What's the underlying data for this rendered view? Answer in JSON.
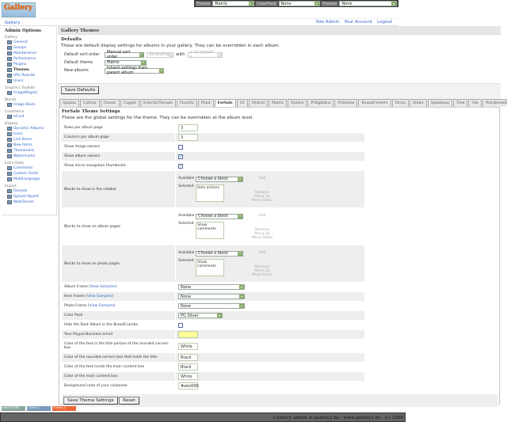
{
  "topbar": {
    "theme_label": "Theme",
    "theme_value": "Matrix",
    "colorpack_label": "ColorPack",
    "colorpack_value": "None",
    "frames_label": "Frames",
    "frames_value": "None"
  },
  "logo_text": "Gallery",
  "breadcrumb": "Gallery",
  "toplinks": [
    "Site Admin",
    "Your Account",
    "Logout"
  ],
  "sidebar": {
    "title": "Admin Options",
    "groups": [
      {
        "name": "Gallery",
        "items": [
          "General",
          "Groups",
          "Maintenance",
          "Performance",
          "Plugins",
          "Themes",
          "URL Rewrite",
          "Users"
        ]
      },
      {
        "name": "Graphics Toolkits",
        "items": [
          "ImageMagick"
        ]
      },
      {
        "name": "Blocks",
        "items": [
          "Image Block"
        ]
      },
      {
        "name": "Commerce",
        "items": [
          "eCard"
        ]
      },
      {
        "name": "Display",
        "items": [
          "Dynamic Albums",
          "Icons",
          "Link Items",
          "New Items",
          "Thumbnails",
          "Watermarks"
        ]
      },
      {
        "name": "Extra Data",
        "items": [
          "Comments",
          "Custom Fields",
          "MultiLanguage"
        ]
      },
      {
        "name": "Import",
        "items": [
          "Remote",
          "Upload Applet",
          "Web/Server"
        ]
      }
    ],
    "current": "Themes"
  },
  "main": {
    "title": "Gallery Themes",
    "defaults": {
      "heading": "Defaults",
      "desc": "These are default display settings for albums in your gallery. They can be overridden in each album.",
      "sort_label": "Default sort order",
      "sort_value": "Manual sort order",
      "sort_dir": "Ascending",
      "with_label": "with",
      "with_value": "« no presort »",
      "theme_label": "Default theme",
      "theme_value": "Matrix",
      "new_label": "New albums",
      "new_value": "Inherit settings from parent album",
      "save": "Save Defaults"
    },
    "tabs": [
      "Ajaxian",
      "Carbon",
      "Classic",
      "Cupple",
      "EclecticThreads",
      "Floatrix",
      "Fluid",
      "ForSale",
      "G1",
      "Hybrid",
      "Matrix",
      "Nature",
      "PGlightbox",
      "PGtheme",
      "RoundCorners",
      "Siriux",
      "Slider",
      "Splatbang",
      "Tree",
      "Tile",
      "WordpressEmbedded"
    ],
    "active_tab": "ForSale",
    "theme": {
      "heading": "ForSale Theme Settings",
      "desc": "These are the global settings for the theme. They can be overridden at the album level.",
      "block_available": "Available",
      "block_selected": "Selected",
      "block_choose": "Choose a block",
      "block_add": "Add",
      "block_remove": "Remove",
      "block_up": "Move Up",
      "block_down": "Move Down",
      "view_samples": "View Samples",
      "rows": [
        {
          "label": "Rows per album page",
          "type": "text",
          "value": "3"
        },
        {
          "label": "Columns per album page",
          "type": "text",
          "value": "3"
        },
        {
          "label": "Show image owners",
          "type": "check",
          "checked": false
        },
        {
          "label": "Show album owners",
          "type": "check",
          "checked": true
        },
        {
          "label": "Show micro navigation thumbnails",
          "type": "check",
          "checked": true
        },
        {
          "label": "Blocks to show in the sidebar",
          "type": "blocks",
          "selected": "Item actions"
        },
        {
          "label": "Blocks to show on album pages",
          "type": "blocks",
          "selected": "Show comments"
        },
        {
          "label": "Blocks to show on photo pages",
          "type": "blocks",
          "selected": "Show comments"
        },
        {
          "label": "Album Frame",
          "samples": true,
          "type": "select",
          "value": "None"
        },
        {
          "label": "Item Frame",
          "samples": true,
          "type": "select",
          "value": "None"
        },
        {
          "label": "Photo Frame",
          "samples": true,
          "type": "select",
          "value": "None"
        },
        {
          "label": "Color Pack",
          "type": "select",
          "value": "PG Silver",
          "short": true
        },
        {
          "label": "Hide the Root Album in the BreadCrumbs",
          "type": "check",
          "checked": false
        },
        {
          "label": "Your Paypal Business email",
          "type": "text",
          "value": "",
          "yellow": true
        },
        {
          "label": "Color of the text in the title portion of the rounded corners box",
          "type": "text",
          "value": "White"
        },
        {
          "label": "Color of the rounded corners box that holds the title",
          "type": "text",
          "value": "Black"
        },
        {
          "label": "Color of the text inside the main content box",
          "type": "text",
          "value": "Black"
        },
        {
          "label": "Color of the main content box",
          "type": "text",
          "value": "White"
        },
        {
          "label": "Background color of your colorpack",
          "type": "text",
          "value": "#ebd095"
        }
      ],
      "save": "Save Theme Settings",
      "reset": "Reset"
    }
  },
  "badges": [
    "valid XHTML",
    "Gallery 2",
    "Gallery 2"
  ],
  "footer": "Contact: admin at gallery2.hu - www.gallery2.hu - (c) 2006",
  "colors": {
    "link": "#3366cc",
    "topbar": "#555555",
    "footer": "#666666"
  }
}
